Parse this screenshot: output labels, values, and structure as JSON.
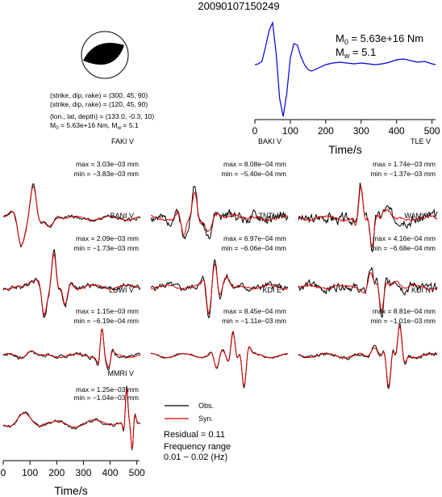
{
  "title": "20090107150249",
  "mechanism": {
    "line1": "(strike, dip, rake) = (300, 45, 90)",
    "line2": "(strike, dip, rake) = (120, 45, 90)",
    "line3": "(lon., lat, depth) = (133.0, -0.3, 10)",
    "m0_prefix": "M",
    "m0_sub": "0",
    "m0_value": " = 5.63e+16 Nm, M",
    "mw_sub": "w",
    "mw_value": " = 5.1"
  },
  "stf": {
    "m0_label": "M",
    "m0_sub": "0",
    "m0_value": " = 5.63e+16 Nm",
    "mw_label": "M",
    "mw_sub": "w",
    "mw_value": " = 5.1"
  },
  "legend": {
    "obs": "Obs.",
    "syn": "Syn.",
    "residual": "Residual = 0.11",
    "freq_title": "Frequency range",
    "freq_value": "0.01 − 0.02 (Hz)"
  },
  "colors": {
    "observed": "#000000",
    "synthetic": "#e00000",
    "stf": "#0000dd"
  },
  "chart_data": [
    {
      "type": "line",
      "name": "source-time-function",
      "xlabel": "Time/s",
      "xlim": [
        0,
        510
      ],
      "xticks": [
        0,
        100,
        200,
        300,
        400,
        500
      ],
      "series": [
        {
          "x": [
            0,
            10,
            20,
            30,
            40,
            50,
            60,
            70,
            80,
            90,
            100,
            110,
            120,
            130,
            140,
            150,
            160,
            180,
            200,
            220,
            240,
            260,
            280,
            300,
            320,
            340,
            360,
            380,
            400,
            420,
            440,
            460,
            480,
            500,
            510
          ],
          "y": [
            0.3,
            0.35,
            0.5,
            1.4,
            2.4,
            2.9,
            1.0,
            -1.8,
            -2.9,
            -1.5,
            0.7,
            1.6,
            1.5,
            0.8,
            0.3,
            0.0,
            -0.1,
            0.1,
            0.3,
            0.4,
            0.45,
            0.4,
            0.35,
            0.4,
            0.35,
            0.3,
            0.35,
            0.45,
            0.6,
            0.65,
            0.55,
            0.45,
            0.5,
            0.35,
            0.3
          ]
        }
      ]
    },
    {
      "type": "line",
      "name": "waveform-fits",
      "xlabel": "Time/s",
      "xlim": [
        0,
        510
      ],
      "xticks": [
        0,
        100,
        200,
        300,
        400,
        500
      ],
      "panels": [
        {
          "station": "FAKI V",
          "max": "max = 3.03e−03 mm",
          "min": "min = −3.83e−03 mm",
          "seed": 1,
          "events": [
            [
              0.22,
              0.07,
              1.0
            ],
            [
              0.13,
              0.08,
              -0.85
            ],
            [
              0.33,
              0.1,
              -0.3
            ]
          ],
          "noise": 0.06,
          "synscale": 0.95
        },
        {
          "station": "BAKI V",
          "max": "max = 8.08e−04 mm",
          "min": "min = −5.40e−04 mm",
          "seed": 2,
          "events": [
            [
              0.32,
              0.06,
              1.0
            ],
            [
              0.24,
              0.06,
              -0.7
            ],
            [
              0.42,
              0.08,
              -0.5
            ],
            [
              0.6,
              0.15,
              0.2
            ]
          ],
          "noise": 0.18,
          "synscale": 0.8
        },
        {
          "station": "TLE V",
          "max": "max = 1.74e−03 mm",
          "min": "min = −1.37e−03 mm",
          "seed": 3,
          "events": [
            [
              0.45,
              0.05,
              1.0
            ],
            [
              0.53,
              0.05,
              -0.9
            ],
            [
              0.63,
              0.1,
              0.3
            ]
          ],
          "noise": 0.2,
          "synscale": 0.95
        },
        {
          "station": "BANI V",
          "max": "max = 2.09e−03 mm",
          "min": "min = −1.73e−03 mm",
          "seed": 4,
          "events": [
            [
              0.37,
              0.05,
              1.0
            ],
            [
              0.3,
              0.06,
              -0.8
            ],
            [
              0.45,
              0.06,
              -0.6
            ],
            [
              0.22,
              0.1,
              0.2
            ]
          ],
          "noise": 0.08,
          "synscale": 0.9
        },
        {
          "station": "TNTI V",
          "max": "max = 6.97e−04 mm",
          "min": "min = −6.06e−04 mm",
          "seed": 5,
          "events": [
            [
              0.47,
              0.05,
              0.9
            ],
            [
              0.42,
              0.05,
              -0.95
            ],
            [
              0.55,
              0.08,
              0.4
            ]
          ],
          "noise": 0.12,
          "synscale": 0.85
        },
        {
          "station": "WAMI V",
          "max": "max = 4.16e−04 mm",
          "min": "min = −6.68e−04 mm",
          "seed": 6,
          "events": [
            [
              0.6,
              0.05,
              -1.0
            ],
            [
              0.52,
              0.06,
              0.6
            ],
            [
              0.7,
              0.1,
              0.3
            ]
          ],
          "noise": 0.15,
          "synscale": 0.75
        },
        {
          "station": "LUWI V",
          "max": "max = 1.15e−03 mm",
          "min": "min = −6.19e−04 mm",
          "seed": 7,
          "events": [
            [
              0.72,
              0.04,
              1.0
            ],
            [
              0.77,
              0.04,
              -0.5
            ],
            [
              0.2,
              0.1,
              0.2
            ]
          ],
          "noise": 0.07,
          "synscale": 0.9
        },
        {
          "station": "KDI E",
          "max": "max = 8.45e−04 mm",
          "min": "min = −1.11e−03 mm",
          "seed": 8,
          "events": [
            [
              0.68,
              0.05,
              -1.0
            ],
            [
              0.6,
              0.05,
              0.8
            ],
            [
              0.48,
              0.06,
              -0.45
            ]
          ],
          "noise": 0.03,
          "synscale": 0.95
        },
        {
          "station": "KDI N",
          "max": "max = 8.81e−04 mm",
          "min": "min = −1.01e−03 mm",
          "seed": 9,
          "events": [
            [
              0.65,
              0.05,
              -1.0
            ],
            [
              0.73,
              0.05,
              0.9
            ],
            [
              0.55,
              0.08,
              0.3
            ]
          ],
          "noise": 0.06,
          "synscale": 0.9
        },
        {
          "station": "MMRI V",
          "max": "max = 1.25e−03 mm",
          "min": "min = −1.04e−03 mm",
          "seed": 10,
          "events": [
            [
              0.9,
              0.03,
              1.0
            ],
            [
              0.94,
              0.03,
              -0.9
            ],
            [
              0.15,
              0.15,
              0.25
            ],
            [
              0.5,
              0.2,
              -0.1
            ]
          ],
          "noise": 0.05,
          "synscale": 0.92
        }
      ]
    }
  ]
}
